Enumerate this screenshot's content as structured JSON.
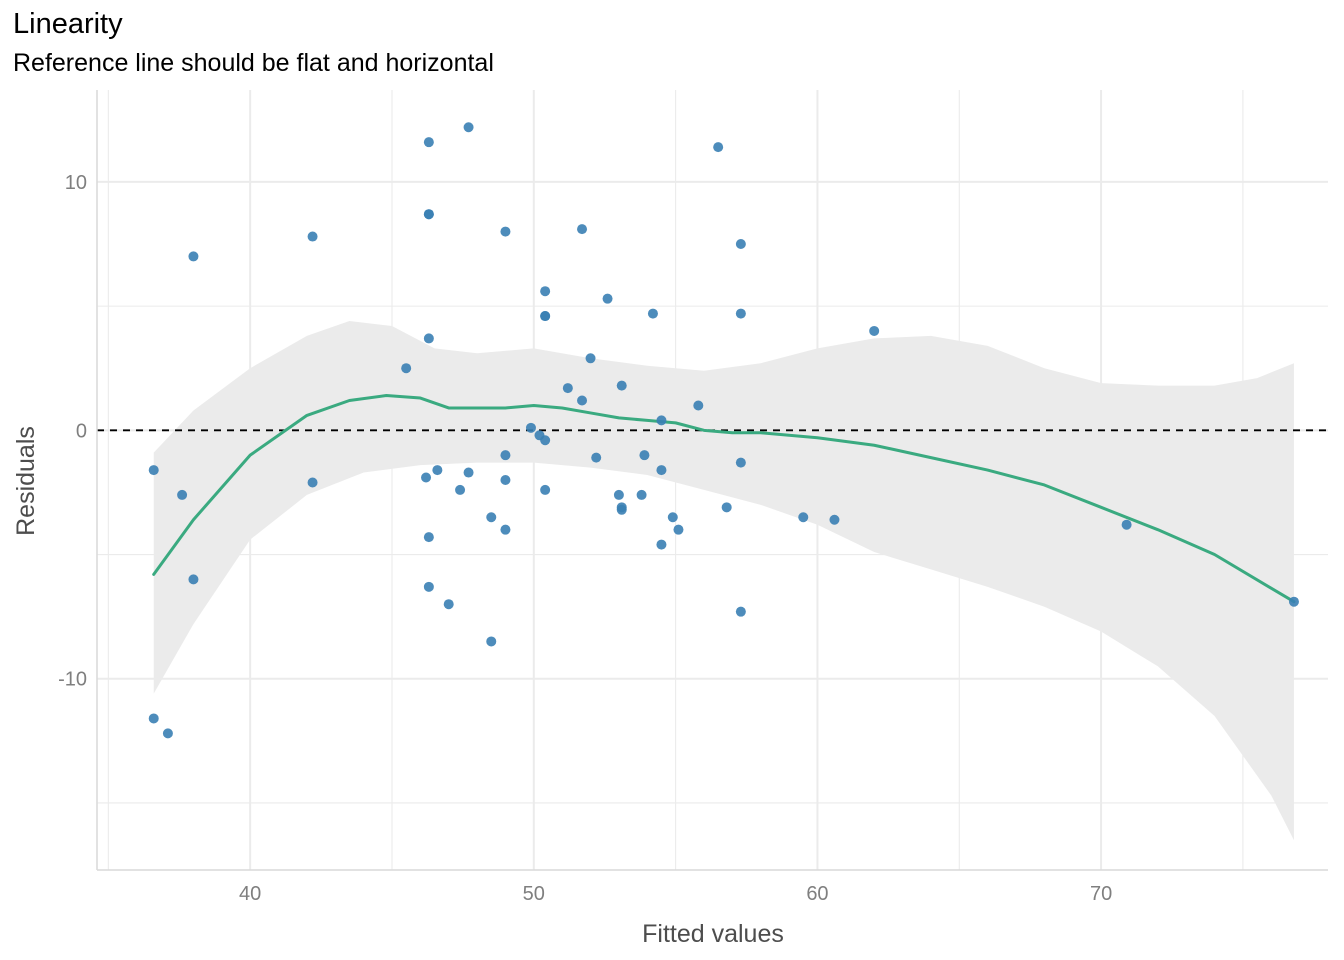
{
  "chart_data": {
    "type": "scatter",
    "title": "Linearity",
    "subtitle": "Reference line should be flat and horizontal",
    "xlabel": "Fitted values",
    "ylabel": "Residuals",
    "xlim": [
      34.6,
      78.0
    ],
    "ylim": [
      -17.7,
      13.7
    ],
    "x_ticks": [
      40,
      50,
      60,
      70
    ],
    "y_ticks": [
      -10,
      0,
      10
    ],
    "grid": true,
    "reference_line_y": 0,
    "colors": {
      "points": "#3a7fb4",
      "smooth": "#3aaa80",
      "band": "#ebebeb",
      "grid": "#ebebeb",
      "reference": "#000000"
    },
    "points": [
      {
        "x": 36.6,
        "y": -1.6
      },
      {
        "x": 36.6,
        "y": -11.6
      },
      {
        "x": 37.1,
        "y": -12.2
      },
      {
        "x": 37.6,
        "y": -2.6
      },
      {
        "x": 38.0,
        "y": 7.0
      },
      {
        "x": 38.0,
        "y": -6.0
      },
      {
        "x": 42.2,
        "y": 7.8
      },
      {
        "x": 42.2,
        "y": -2.1
      },
      {
        "x": 45.5,
        "y": 2.5
      },
      {
        "x": 46.2,
        "y": -1.9
      },
      {
        "x": 46.3,
        "y": 11.6
      },
      {
        "x": 46.3,
        "y": 8.7
      },
      {
        "x": 46.3,
        "y": 8.7
      },
      {
        "x": 46.3,
        "y": 3.7
      },
      {
        "x": 46.3,
        "y": -4.3
      },
      {
        "x": 46.3,
        "y": -6.3
      },
      {
        "x": 46.6,
        "y": -1.6
      },
      {
        "x": 47.0,
        "y": -7.0
      },
      {
        "x": 47.4,
        "y": -2.4
      },
      {
        "x": 47.7,
        "y": 12.2
      },
      {
        "x": 47.7,
        "y": -1.7
      },
      {
        "x": 48.5,
        "y": -3.5
      },
      {
        "x": 48.5,
        "y": -8.5
      },
      {
        "x": 49.0,
        "y": 8.0
      },
      {
        "x": 49.0,
        "y": -1.0
      },
      {
        "x": 49.0,
        "y": -2.0
      },
      {
        "x": 49.0,
        "y": -4.0
      },
      {
        "x": 49.9,
        "y": 0.1
      },
      {
        "x": 50.2,
        "y": -0.2
      },
      {
        "x": 50.4,
        "y": 5.6
      },
      {
        "x": 50.4,
        "y": 4.6
      },
      {
        "x": 50.4,
        "y": 4.6
      },
      {
        "x": 50.4,
        "y": -0.4
      },
      {
        "x": 50.4,
        "y": -2.4
      },
      {
        "x": 51.2,
        "y": 1.7
      },
      {
        "x": 51.7,
        "y": 8.1
      },
      {
        "x": 51.7,
        "y": 1.2
      },
      {
        "x": 52.0,
        "y": 2.9
      },
      {
        "x": 52.2,
        "y": -1.1
      },
      {
        "x": 52.6,
        "y": 5.3
      },
      {
        "x": 53.0,
        "y": -2.6
      },
      {
        "x": 53.1,
        "y": 1.8
      },
      {
        "x": 53.1,
        "y": -3.1
      },
      {
        "x": 53.1,
        "y": -3.2
      },
      {
        "x": 53.8,
        "y": -2.6
      },
      {
        "x": 53.9,
        "y": -1.0
      },
      {
        "x": 54.2,
        "y": 4.7
      },
      {
        "x": 54.5,
        "y": 0.4
      },
      {
        "x": 54.5,
        "y": -1.6
      },
      {
        "x": 54.5,
        "y": -4.6
      },
      {
        "x": 54.9,
        "y": -3.5
      },
      {
        "x": 55.1,
        "y": -4.0
      },
      {
        "x": 55.8,
        "y": 1.0
      },
      {
        "x": 56.5,
        "y": 11.4
      },
      {
        "x": 56.8,
        "y": -3.1
      },
      {
        "x": 57.3,
        "y": 7.5
      },
      {
        "x": 57.3,
        "y": 4.7
      },
      {
        "x": 57.3,
        "y": -1.3
      },
      {
        "x": 57.3,
        "y": -7.3
      },
      {
        "x": 59.5,
        "y": -3.5
      },
      {
        "x": 60.6,
        "y": -3.6
      },
      {
        "x": 62.0,
        "y": 4.0
      },
      {
        "x": 70.9,
        "y": -3.8
      },
      {
        "x": 76.8,
        "y": -6.9
      }
    ],
    "smooth": [
      {
        "x": 36.6,
        "y": -5.8
      },
      {
        "x": 38.0,
        "y": -3.6
      },
      {
        "x": 40.0,
        "y": -1.0
      },
      {
        "x": 42.0,
        "y": 0.6
      },
      {
        "x": 43.5,
        "y": 1.2
      },
      {
        "x": 44.8,
        "y": 1.4
      },
      {
        "x": 46.0,
        "y": 1.3
      },
      {
        "x": 47.0,
        "y": 0.9
      },
      {
        "x": 48.0,
        "y": 0.9
      },
      {
        "x": 49.0,
        "y": 0.9
      },
      {
        "x": 50.0,
        "y": 1.0
      },
      {
        "x": 51.0,
        "y": 0.9
      },
      {
        "x": 52.0,
        "y": 0.7
      },
      {
        "x": 53.0,
        "y": 0.5
      },
      {
        "x": 54.0,
        "y": 0.4
      },
      {
        "x": 55.0,
        "y": 0.3
      },
      {
        "x": 56.0,
        "y": 0.0
      },
      {
        "x": 57.0,
        "y": -0.1
      },
      {
        "x": 58.0,
        "y": -0.1
      },
      {
        "x": 60.0,
        "y": -0.3
      },
      {
        "x": 62.0,
        "y": -0.6
      },
      {
        "x": 64.0,
        "y": -1.1
      },
      {
        "x": 66.0,
        "y": -1.6
      },
      {
        "x": 68.0,
        "y": -2.2
      },
      {
        "x": 70.0,
        "y": -3.1
      },
      {
        "x": 72.0,
        "y": -4.0
      },
      {
        "x": 74.0,
        "y": -5.0
      },
      {
        "x": 76.8,
        "y": -6.9
      }
    ],
    "band_upper": [
      {
        "x": 36.6,
        "y": -0.9
      },
      {
        "x": 38.0,
        "y": 0.8
      },
      {
        "x": 40.0,
        "y": 2.5
      },
      {
        "x": 42.0,
        "y": 3.8
      },
      {
        "x": 43.5,
        "y": 4.4
      },
      {
        "x": 45.0,
        "y": 4.2
      },
      {
        "x": 46.5,
        "y": 3.3
      },
      {
        "x": 48.0,
        "y": 3.1
      },
      {
        "x": 50.0,
        "y": 3.3
      },
      {
        "x": 52.0,
        "y": 2.9
      },
      {
        "x": 54.0,
        "y": 2.6
      },
      {
        "x": 56.0,
        "y": 2.4
      },
      {
        "x": 58.0,
        "y": 2.7
      },
      {
        "x": 60.0,
        "y": 3.3
      },
      {
        "x": 62.0,
        "y": 3.7
      },
      {
        "x": 64.0,
        "y": 3.8
      },
      {
        "x": 66.0,
        "y": 3.4
      },
      {
        "x": 68.0,
        "y": 2.5
      },
      {
        "x": 70.0,
        "y": 1.9
      },
      {
        "x": 72.0,
        "y": 1.8
      },
      {
        "x": 74.0,
        "y": 1.8
      },
      {
        "x": 75.5,
        "y": 2.1
      },
      {
        "x": 76.8,
        "y": 2.7
      }
    ],
    "band_lower": [
      {
        "x": 36.6,
        "y": -10.6
      },
      {
        "x": 38.0,
        "y": -7.8
      },
      {
        "x": 40.0,
        "y": -4.4
      },
      {
        "x": 42.0,
        "y": -2.6
      },
      {
        "x": 44.0,
        "y": -1.7
      },
      {
        "x": 46.0,
        "y": -1.4
      },
      {
        "x": 48.0,
        "y": -1.3
      },
      {
        "x": 50.0,
        "y": -1.3
      },
      {
        "x": 52.0,
        "y": -1.5
      },
      {
        "x": 54.0,
        "y": -1.8
      },
      {
        "x": 56.0,
        "y": -2.4
      },
      {
        "x": 58.0,
        "y": -3.0
      },
      {
        "x": 60.0,
        "y": -3.8
      },
      {
        "x": 62.0,
        "y": -4.9
      },
      {
        "x": 64.0,
        "y": -5.6
      },
      {
        "x": 66.0,
        "y": -6.3
      },
      {
        "x": 68.0,
        "y": -7.1
      },
      {
        "x": 70.0,
        "y": -8.1
      },
      {
        "x": 72.0,
        "y": -9.5
      },
      {
        "x": 74.0,
        "y": -11.5
      },
      {
        "x": 76.0,
        "y": -14.7
      },
      {
        "x": 76.8,
        "y": -16.5
      }
    ]
  }
}
